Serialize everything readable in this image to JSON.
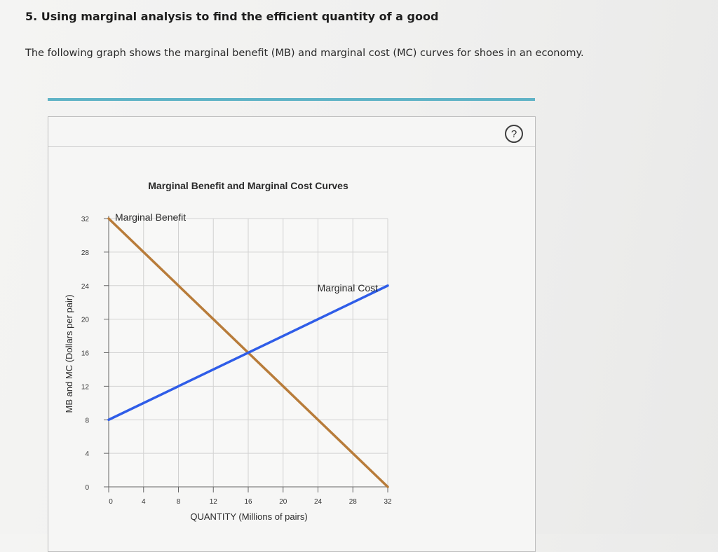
{
  "question": {
    "title": "5. Using marginal analysis to find the efficient quantity of a good",
    "text": "The following graph shows the marginal benefit (MB) and marginal cost (MC) curves for shoes in an economy."
  },
  "panel": {
    "help_icon": "question-circle-icon",
    "help_label": "?"
  },
  "colors": {
    "accent_rule": "#5fb3c6",
    "marginal_benefit": "#b87c3a",
    "marginal_cost": "#2f5de8",
    "grid": "#d2d2d2"
  },
  "chart_data": {
    "type": "line",
    "title": "Marginal Benefit and Marginal Cost Curves",
    "xlabel": "QUANTITY (Millions of pairs)",
    "ylabel": "MB and MC (Dollars per pair)",
    "xlim": [
      0,
      32
    ],
    "ylim": [
      0,
      32
    ],
    "xticks": [
      0,
      4,
      8,
      12,
      16,
      20,
      24,
      28,
      32
    ],
    "yticks": [
      0,
      4,
      8,
      12,
      16,
      20,
      24,
      28,
      32
    ],
    "grid": true,
    "series": [
      {
        "name": "Marginal Benefit",
        "x": [
          0,
          32
        ],
        "y": [
          32,
          0
        ]
      },
      {
        "name": "Marginal Cost",
        "x": [
          0,
          32
        ],
        "y": [
          8,
          24
        ]
      }
    ]
  }
}
